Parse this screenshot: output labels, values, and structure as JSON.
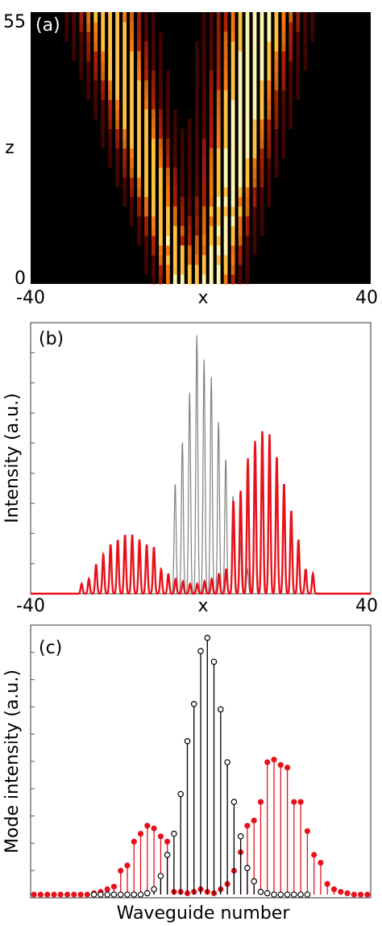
{
  "chart_data": [
    {
      "panel_label": "(a)",
      "type": "heatmap",
      "xlabel": "x",
      "ylabel": "z",
      "x_tick_labels": [
        "-40",
        "40"
      ],
      "y_tick_labels": [
        "0",
        "55"
      ],
      "xlim": [
        -40,
        40
      ],
      "ylim": [
        0,
        55
      ],
      "colormap": "hot",
      "description_features": {
        "left_beam": {
          "x_at_z0": -5,
          "x_at_z55": -22,
          "width": 10
        },
        "right_beam": {
          "x_at_z0": 3,
          "x_at_z55": 14,
          "width": 12
        },
        "waveguide_spacing": 1.7
      }
    },
    {
      "panel_label": "(b)",
      "type": "line",
      "xlabel": "x",
      "ylabel": "Intensity (a.u.)",
      "x_tick_labels": [
        "-40",
        "40"
      ],
      "xlim": [
        -40,
        40
      ],
      "ylim": [
        0,
        1.1
      ],
      "series": [
        {
          "color": "#808080",
          "peak_x": [
            -6,
            -4.3,
            -2.6,
            -0.9,
            0.8,
            2.5,
            4.2,
            5.9,
            7.6,
            9.3,
            11
          ],
          "peak_y": [
            0.45,
            0.62,
            0.82,
            1.05,
            0.95,
            0.88,
            0.7,
            0.55,
            0.4,
            0.22,
            0.1
          ]
        },
        {
          "color": "#e8111a",
          "peak_x": [
            -28,
            -26.3,
            -24.6,
            -22.9,
            -21.2,
            -19.5,
            -17.8,
            -16.1,
            -14.4,
            -12.7,
            -11,
            -9.3,
            -7.6,
            -5.9,
            -4.2,
            -2.5,
            -0.8,
            0.9,
            2.6,
            4.3,
            6,
            7.7,
            9.4,
            11.1,
            12.8,
            14.5,
            16.2,
            17.9,
            19.6,
            21.3,
            23,
            24.7,
            26.4
          ],
          "peak_y": [
            0.04,
            0.06,
            0.12,
            0.16,
            0.2,
            0.22,
            0.24,
            0.24,
            0.22,
            0.2,
            0.19,
            0.1,
            0.08,
            0.06,
            0.05,
            0.04,
            0.04,
            0.05,
            0.06,
            0.08,
            0.1,
            0.38,
            0.42,
            0.55,
            0.62,
            0.66,
            0.65,
            0.56,
            0.45,
            0.34,
            0.22,
            0.1,
            0.08
          ]
        }
      ]
    },
    {
      "panel_label": "(c)",
      "type": "scatter",
      "xlabel": "Waveguide number",
      "ylabel": "Mode intensity (a.u.)",
      "ylim": [
        0,
        1.0
      ],
      "series": [
        {
          "color": "#000000",
          "marker": "open-circle",
          "x": [
            -16,
            -15,
            -14,
            -13,
            -12,
            -11,
            -10,
            -9,
            -8,
            -7,
            -6,
            -5,
            -4,
            -3,
            -2,
            -1,
            0,
            1,
            2,
            3,
            4,
            5,
            6,
            7,
            8,
            9,
            10,
            11,
            12,
            13,
            14,
            15,
            16
          ],
          "y": [
            0,
            0,
            0,
            0,
            0,
            0,
            0,
            0,
            0.005,
            0.02,
            0.07,
            0.15,
            0.23,
            0.38,
            0.58,
            0.72,
            0.92,
            0.97,
            0.88,
            0.7,
            0.5,
            0.35,
            0.22,
            0.1,
            0.05,
            0.01,
            0.005,
            0,
            0,
            0,
            0,
            0,
            0
          ]
        },
        {
          "color": "#e8111a",
          "marker": "filled-circle",
          "x": [
            -25,
            -24,
            -23,
            -22,
            -21,
            -20,
            -19,
            -18,
            -17,
            -16,
            -15,
            -14,
            -13,
            -12,
            -11,
            -10,
            -9,
            -8,
            -7,
            -6,
            -5,
            -4,
            -3,
            -2,
            -1,
            0,
            1,
            2,
            3,
            4,
            5,
            6,
            7,
            8,
            9,
            10,
            11,
            12,
            13,
            14,
            15,
            16,
            17,
            18,
            19,
            20,
            21,
            22,
            23,
            24,
            25
          ],
          "y": [
            0,
            0,
            0,
            0,
            0,
            0,
            0,
            0,
            0,
            0.005,
            0.01,
            0.02,
            0.03,
            0.09,
            0.11,
            0.2,
            0.23,
            0.26,
            0.25,
            0.22,
            0.2,
            0.01,
            0.01,
            0.005,
            0.01,
            0.02,
            0.01,
            0.005,
            0.02,
            0.04,
            0.09,
            0.16,
            0.26,
            0.28,
            0.35,
            0.5,
            0.51,
            0.49,
            0.48,
            0.35,
            0.35,
            0.24,
            0.15,
            0.12,
            0.04,
            0.02,
            0.01,
            0.005,
            0,
            0,
            0
          ]
        }
      ]
    }
  ]
}
